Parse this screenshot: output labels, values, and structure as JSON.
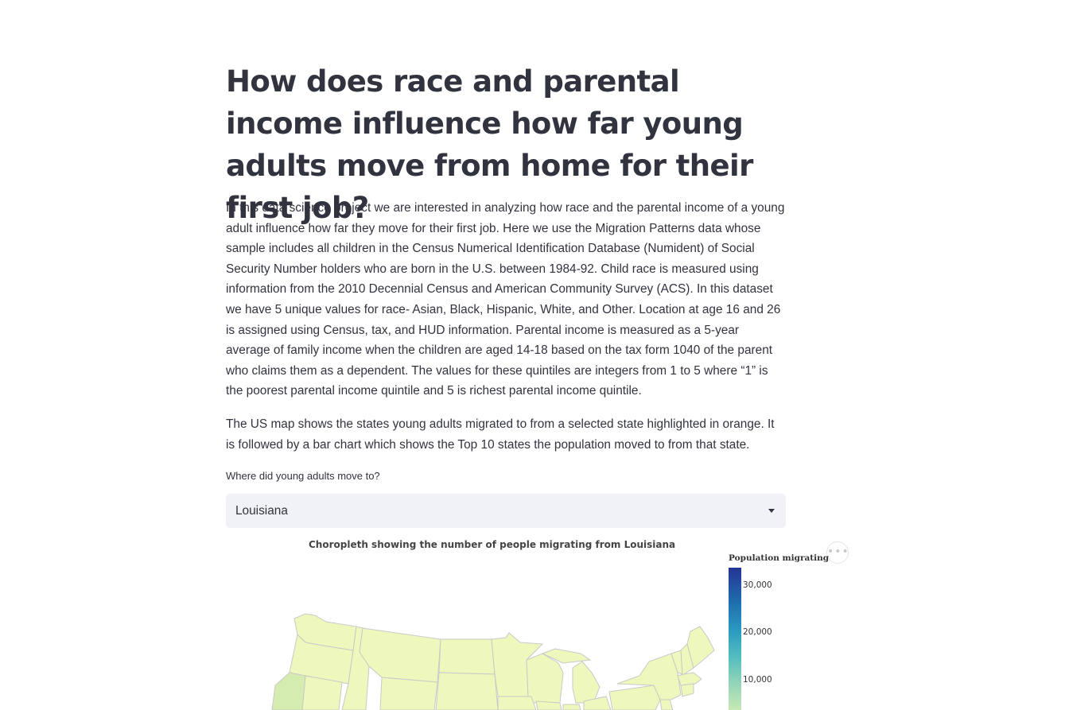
{
  "page": {
    "title": "How does race and parental income influence how far young adults move from home for their first job?",
    "intro_paragraph": "In this data science project we are interested in analyzing how race and the parental income of a young adult influence how far they move for their first job. Here we use the Migration Patterns data whose sample includes all children in the Census Numerical Identification Database (Numident) of Social Security Number holders who are born in the U.S. between 1984-92. Child race is measured using information from the 2010 Decennial Census and American Community Survey (ACS). In this dataset we have 5 unique values for race- Asian, Black, Hispanic, White, and Other. Location at age 16 and 26 is assigned using Census, tax, and HUD information. Parental income is measured as a 5-year average of family income when the children are aged 14-18 based on the tax form 1040 of the parent who claims them as a dependent. The values for these quintiles are integers from 1 to 5 where “1” is the poorest parental income quintile and 5 is richest parental income quintile.",
    "map_paragraph": "The US map shows the states young adults migrated to from a selected state highlighted in orange. It is followed by a bar chart which shows the Top 10 states the population moved to from that state."
  },
  "state_select": {
    "label": "Where did young adults move to?",
    "value": "Louisiana"
  },
  "chart": {
    "title": "Choropleth showing the number of people migrating from Louisiana",
    "more_icon": "ellipsis-icon",
    "legend_title": "Population migrating",
    "legend_ticks": [
      "30,000",
      "20,000",
      "10,000"
    ],
    "colors": {
      "low": "#edf8b1",
      "mid": "#52bcbf",
      "high": "#253494",
      "state_stroke": "#c9c9c9",
      "highlight": "#d4ecb0"
    }
  }
}
